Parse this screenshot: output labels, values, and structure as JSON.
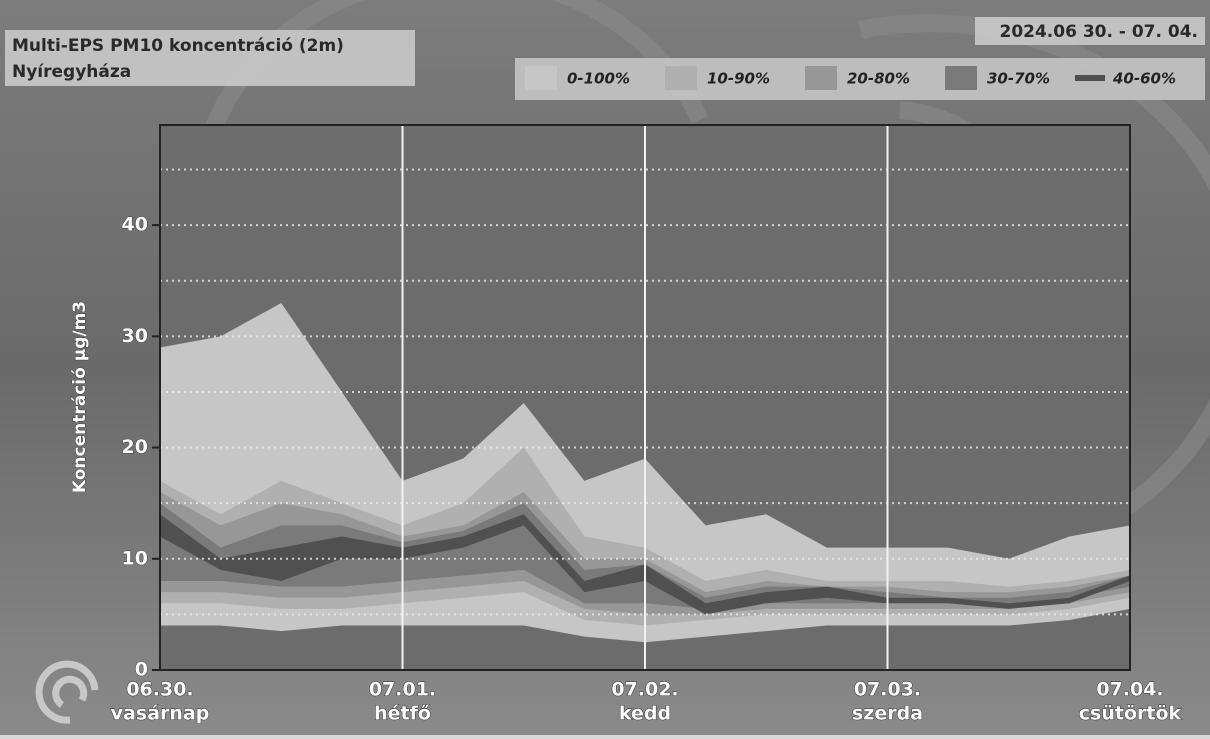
{
  "chart_data": {
    "type": "fan",
    "title": "Multi-EPS PM10 koncentráció (2m)",
    "subtitle": "Nyíregyháza",
    "date_range": "2024.06 30. - 07. 04.",
    "y_label": "Koncentráció µg/m3",
    "categories": [
      "06.30.",
      null,
      null,
      null,
      "07.01.",
      null,
      null,
      null,
      "07.02.",
      null,
      null,
      null,
      "07.03.",
      null,
      null,
      null,
      "07.04."
    ],
    "weekdays": [
      "vasárnap",
      null,
      null,
      null,
      "hétfő",
      null,
      null,
      null,
      "kedd",
      null,
      null,
      null,
      "szerda",
      null,
      null,
      null,
      "csütörtök"
    ],
    "ylim": [
      0,
      49
    ],
    "yticks": [
      0,
      10,
      20,
      30,
      40
    ],
    "grid_yticks": [
      5,
      10,
      15,
      20,
      25,
      30,
      35,
      40,
      45
    ],
    "series": [
      {
        "name": "0-100%",
        "color": "#c6c6c6",
        "high": [
          29,
          30,
          33,
          25,
          17,
          19,
          24,
          17,
          19,
          13,
          14,
          11,
          11,
          11,
          10,
          12,
          13
        ],
        "low": [
          4,
          4,
          3.5,
          4,
          4,
          4,
          4,
          3,
          2.5,
          3,
          3.5,
          4,
          4,
          4,
          4,
          4.5,
          5.5
        ]
      },
      {
        "name": "10-90%",
        "color": "#b0b0b0",
        "high": [
          17,
          14,
          17,
          15,
          13,
          15,
          20,
          12,
          11,
          8,
          9,
          8,
          8,
          8,
          7.5,
          8,
          9
        ],
        "low": [
          6,
          6,
          5.5,
          5.5,
          6,
          6.5,
          7,
          4.5,
          4,
          4.5,
          5,
          5,
          5,
          5,
          5,
          5.5,
          6.5
        ]
      },
      {
        "name": "20-80%",
        "color": "#979797",
        "high": [
          16,
          13,
          15,
          14,
          12,
          13,
          16,
          10,
          10,
          7,
          8,
          7.5,
          7.5,
          7,
          7,
          7.5,
          8.5
        ],
        "low": [
          7,
          7,
          6.5,
          6.5,
          7,
          7.5,
          8,
          5.5,
          5,
          5,
          5.5,
          5.5,
          5.5,
          5.5,
          5.5,
          6,
          7
        ]
      },
      {
        "name": "30-70%",
        "color": "#7a7a7a",
        "high": [
          15,
          11,
          13,
          13,
          11.5,
          12.5,
          15,
          9,
          9.5,
          6.5,
          7.5,
          7.5,
          7,
          6.5,
          6.5,
          7,
          8.5
        ],
        "low": [
          8,
          8,
          7.5,
          7.5,
          8,
          8.5,
          9,
          6,
          6,
          5.5,
          6,
          6,
          6,
          6,
          6,
          6.5,
          7.5
        ]
      },
      {
        "name": "40-60%",
        "color": "#505050",
        "high": [
          14,
          10,
          11,
          12,
          11,
          12,
          14,
          8,
          9.5,
          6,
          7,
          7.5,
          6.5,
          6.5,
          6,
          6.5,
          8.5
        ],
        "low": [
          12,
          9,
          8,
          10,
          10,
          11,
          13,
          7,
          8,
          5,
          6,
          6.5,
          6,
          6,
          5.5,
          6,
          8
        ]
      }
    ]
  }
}
